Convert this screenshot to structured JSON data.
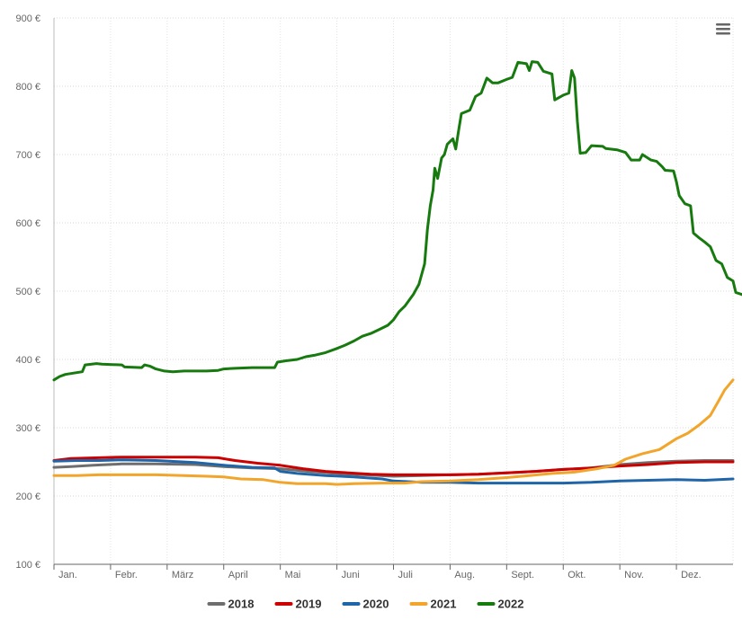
{
  "chart_data": {
    "type": "line",
    "title": "",
    "xlabel": "",
    "ylabel": "",
    "ylim": [
      100,
      900
    ],
    "y_ticks": [
      100,
      200,
      300,
      400,
      500,
      600,
      700,
      800,
      900
    ],
    "y_tick_labels": [
      "100 €",
      "200 €",
      "300 €",
      "400 €",
      "500 €",
      "600 €",
      "700 €",
      "800 €",
      "900 €"
    ],
    "x_domain": [
      0,
      12
    ],
    "month_labels": [
      "Jan.",
      "Febr.",
      "März",
      "April",
      "Mai",
      "Juni",
      "Juli",
      "Aug.",
      "Sept.",
      "Okt.",
      "Nov.",
      "Dez."
    ],
    "gridlines": true,
    "legend_position": "bottom-center",
    "series": [
      {
        "name": "2018",
        "color": "#6e6e6e",
        "points": [
          [
            0,
            242
          ],
          [
            0.3,
            243
          ],
          [
            0.7,
            245
          ],
          [
            1.2,
            247
          ],
          [
            1.8,
            247
          ],
          [
            2.5,
            246
          ],
          [
            3.0,
            243
          ],
          [
            3.5,
            241
          ],
          [
            4.0,
            240
          ],
          [
            4.5,
            236
          ],
          [
            5.0,
            233
          ],
          [
            5.5,
            231
          ],
          [
            6.0,
            229
          ],
          [
            6.5,
            230
          ],
          [
            7.0,
            231
          ],
          [
            7.5,
            232
          ],
          [
            8.0,
            234
          ],
          [
            8.5,
            236
          ],
          [
            9.0,
            239
          ],
          [
            9.5,
            241
          ],
          [
            10.0,
            246
          ],
          [
            10.5,
            249
          ],
          [
            11.0,
            251
          ],
          [
            11.5,
            252
          ],
          [
            12,
            252
          ]
        ]
      },
      {
        "name": "2019",
        "color": "#cc0000",
        "points": [
          [
            0,
            252
          ],
          [
            0.3,
            255
          ],
          [
            0.8,
            256
          ],
          [
            1.2,
            257
          ],
          [
            1.8,
            257
          ],
          [
            2.5,
            257
          ],
          [
            2.9,
            256
          ],
          [
            3.2,
            252
          ],
          [
            3.6,
            248
          ],
          [
            4.0,
            245
          ],
          [
            4.4,
            240
          ],
          [
            4.8,
            236
          ],
          [
            5.2,
            234
          ],
          [
            5.6,
            232
          ],
          [
            6.0,
            231
          ],
          [
            6.5,
            231
          ],
          [
            7.0,
            231
          ],
          [
            7.5,
            232
          ],
          [
            8.0,
            234
          ],
          [
            8.5,
            236
          ],
          [
            9.0,
            239
          ],
          [
            9.5,
            241
          ],
          [
            10.0,
            244
          ],
          [
            10.5,
            246
          ],
          [
            11.0,
            249
          ],
          [
            11.5,
            250
          ],
          [
            12,
            250
          ]
        ]
      },
      {
        "name": "2020",
        "color": "#1f65a8",
        "points": [
          [
            0,
            251
          ],
          [
            0.4,
            252
          ],
          [
            0.8,
            252
          ],
          [
            1.2,
            253
          ],
          [
            1.8,
            252
          ],
          [
            2.5,
            249
          ],
          [
            3.0,
            245
          ],
          [
            3.5,
            242
          ],
          [
            3.9,
            241
          ],
          [
            4.0,
            236
          ],
          [
            4.3,
            233
          ],
          [
            4.8,
            230
          ],
          [
            5.3,
            228
          ],
          [
            5.8,
            225
          ],
          [
            6.0,
            222
          ],
          [
            6.5,
            220
          ],
          [
            7.0,
            220
          ],
          [
            7.5,
            219
          ],
          [
            8.0,
            219
          ],
          [
            8.5,
            219
          ],
          [
            9.0,
            219
          ],
          [
            9.5,
            220
          ],
          [
            10.0,
            222
          ],
          [
            10.5,
            223
          ],
          [
            11.0,
            224
          ],
          [
            11.5,
            223
          ],
          [
            12,
            225
          ]
        ]
      },
      {
        "name": "2021",
        "color": "#f2a52b",
        "points": [
          [
            0,
            230
          ],
          [
            0.4,
            230
          ],
          [
            0.8,
            231
          ],
          [
            1.2,
            231
          ],
          [
            1.8,
            231
          ],
          [
            2.3,
            230
          ],
          [
            2.7,
            229
          ],
          [
            3.0,
            228
          ],
          [
            3.3,
            225
          ],
          [
            3.7,
            224
          ],
          [
            4.0,
            220
          ],
          [
            4.3,
            218
          ],
          [
            4.8,
            218
          ],
          [
            5.0,
            217
          ],
          [
            5.3,
            218
          ],
          [
            5.8,
            219
          ],
          [
            6.2,
            219
          ],
          [
            6.5,
            221
          ],
          [
            7.0,
            222
          ],
          [
            7.5,
            224
          ],
          [
            8.0,
            227
          ],
          [
            8.4,
            230
          ],
          [
            8.8,
            233
          ],
          [
            9.2,
            235
          ],
          [
            9.6,
            240
          ],
          [
            9.9,
            245
          ],
          [
            10.1,
            254
          ],
          [
            10.4,
            262
          ],
          [
            10.7,
            268
          ],
          [
            11.0,
            284
          ],
          [
            11.2,
            292
          ],
          [
            11.4,
            304
          ],
          [
            11.6,
            318
          ],
          [
            11.75,
            340
          ],
          [
            11.85,
            355
          ],
          [
            11.95,
            365
          ],
          [
            12,
            370
          ]
        ]
      },
      {
        "name": "2022",
        "color": "#177a0f",
        "points": [
          [
            0,
            370
          ],
          [
            0.1,
            375
          ],
          [
            0.2,
            378
          ],
          [
            0.35,
            380
          ],
          [
            0.5,
            382
          ],
          [
            0.55,
            392
          ],
          [
            0.75,
            394
          ],
          [
            0.85,
            393
          ],
          [
            1.2,
            392
          ],
          [
            1.25,
            389
          ],
          [
            1.55,
            388
          ],
          [
            1.6,
            392
          ],
          [
            1.7,
            390
          ],
          [
            1.8,
            386
          ],
          [
            1.95,
            383
          ],
          [
            2.1,
            382
          ],
          [
            2.3,
            383
          ],
          [
            2.5,
            383
          ],
          [
            2.7,
            383
          ],
          [
            2.9,
            384
          ],
          [
            3.0,
            386
          ],
          [
            3.2,
            387
          ],
          [
            3.5,
            388
          ],
          [
            3.8,
            388
          ],
          [
            3.9,
            388
          ],
          [
            3.95,
            396
          ],
          [
            4.1,
            398
          ],
          [
            4.3,
            400
          ],
          [
            4.45,
            404
          ],
          [
            4.6,
            406
          ],
          [
            4.8,
            410
          ],
          [
            5.0,
            416
          ],
          [
            5.15,
            421
          ],
          [
            5.3,
            427
          ],
          [
            5.45,
            434
          ],
          [
            5.6,
            438
          ],
          [
            5.75,
            444
          ],
          [
            5.9,
            450
          ],
          [
            6.0,
            458
          ],
          [
            6.1,
            470
          ],
          [
            6.2,
            478
          ],
          [
            6.35,
            495
          ],
          [
            6.45,
            510
          ],
          [
            6.55,
            540
          ],
          [
            6.6,
            590
          ],
          [
            6.65,
            625
          ],
          [
            6.7,
            648
          ],
          [
            6.73,
            680
          ],
          [
            6.78,
            665
          ],
          [
            6.85,
            695
          ],
          [
            6.9,
            700
          ],
          [
            6.95,
            715
          ],
          [
            7.05,
            723
          ],
          [
            7.1,
            708
          ],
          [
            7.15,
            735
          ],
          [
            7.2,
            760
          ],
          [
            7.35,
            765
          ],
          [
            7.45,
            785
          ],
          [
            7.55,
            790
          ],
          [
            7.65,
            812
          ],
          [
            7.75,
            805
          ],
          [
            7.85,
            805
          ],
          [
            8.0,
            810
          ],
          [
            8.1,
            813
          ],
          [
            8.2,
            835
          ],
          [
            8.35,
            833
          ],
          [
            8.4,
            823
          ],
          [
            8.45,
            836
          ],
          [
            8.55,
            835
          ],
          [
            8.65,
            822
          ],
          [
            8.8,
            818
          ],
          [
            8.85,
            780
          ],
          [
            9.0,
            787
          ],
          [
            9.1,
            790
          ],
          [
            9.15,
            823
          ],
          [
            9.2,
            812
          ],
          [
            9.25,
            748
          ],
          [
            9.3,
            702
          ],
          [
            9.4,
            703
          ],
          [
            9.5,
            713
          ],
          [
            9.7,
            712
          ],
          [
            9.75,
            709
          ],
          [
            9.95,
            707
          ],
          [
            10.1,
            703
          ],
          [
            10.2,
            692
          ],
          [
            10.35,
            692
          ],
          [
            10.4,
            700
          ],
          [
            10.55,
            692
          ],
          [
            10.65,
            690
          ],
          [
            10.75,
            682
          ],
          [
            10.8,
            677
          ],
          [
            10.95,
            676
          ],
          [
            11.0,
            660
          ],
          [
            11.05,
            640
          ],
          [
            11.15,
            628
          ],
          [
            11.25,
            625
          ],
          [
            11.3,
            585
          ],
          [
            11.4,
            578
          ],
          [
            11.5,
            572
          ],
          [
            11.6,
            565
          ],
          [
            11.7,
            545
          ],
          [
            11.8,
            540
          ],
          [
            11.9,
            520
          ],
          [
            12.0,
            515
          ],
          [
            12.05,
            498
          ],
          [
            12.2,
            494
          ],
          [
            12.4,
            492
          ],
          [
            12.6,
            493
          ]
        ]
      }
    ]
  },
  "ui": {
    "menu_icon": "hamburger-menu-icon"
  }
}
